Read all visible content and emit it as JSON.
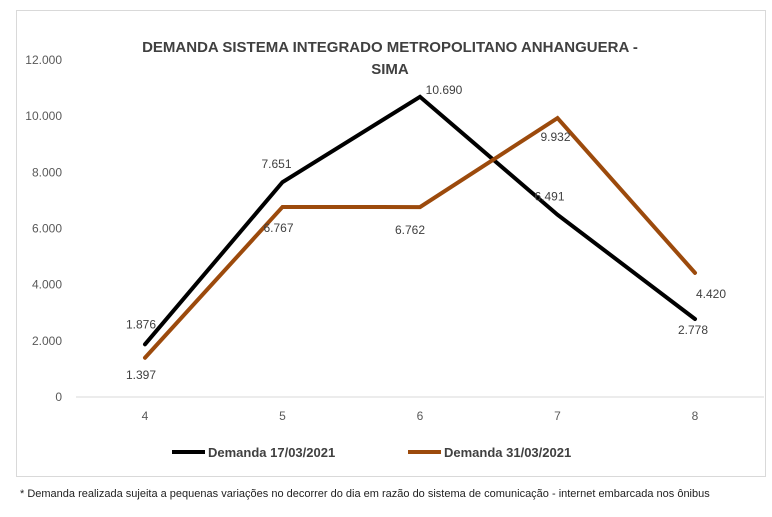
{
  "chart_data": {
    "type": "line",
    "title_line1": "DEMANDA  SISTEMA INTEGRADO METROPOLITANO ANHANGUERA -",
    "title_line2": "SIMA",
    "categories": [
      "4",
      "5",
      "6",
      "7",
      "8"
    ],
    "y_ticks": [
      "0",
      "2.000",
      "4.000",
      "6.000",
      "8.000",
      "10.000",
      "12.000"
    ],
    "ylim": [
      0,
      12000
    ],
    "grid": false,
    "legend_position": "bottom",
    "series": [
      {
        "name": "Demanda 17/03/2021",
        "color": "#000000",
        "values": [
          1876,
          7651,
          10690,
          6491,
          2778
        ],
        "labels": [
          "1.876",
          "7.651",
          "10.690",
          "6.491",
          "2.778"
        ]
      },
      {
        "name": "Demanda 31/03/2021",
        "color": "#9c4a0c",
        "values": [
          1397,
          6767,
          6762,
          9932,
          4420
        ],
        "labels": [
          "1.397",
          "6.767",
          "6.762",
          "9.932",
          "4.420"
        ]
      }
    ]
  },
  "footnote": "* Demanda realizada sujeita a pequenas variações no decorrer do dia  em razão do sistema de comunicação - internet embarcada nos ônibus"
}
